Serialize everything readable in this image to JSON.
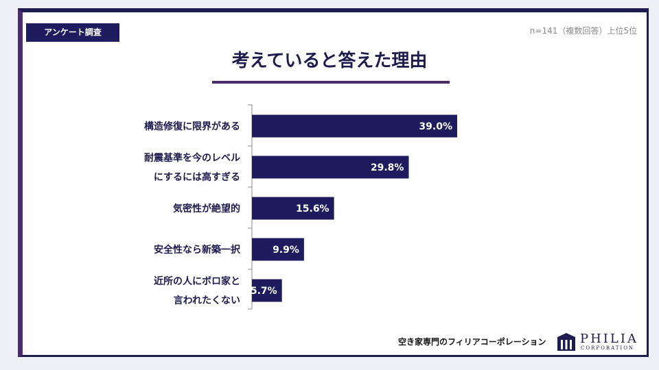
{
  "header": {
    "tag": "アンケート調査",
    "sample_note": "n=141（複数回答）上位5位",
    "title": "考えていると答えた理由"
  },
  "colors": {
    "bar": "#1e1b5e",
    "accent": "#4b2a6e",
    "axis": "#888888",
    "label_text": "#1e1b4e",
    "value_text": "#ffffff"
  },
  "chart_data": {
    "type": "bar",
    "orientation": "horizontal",
    "categories": [
      [
        "構造修復に限界がある"
      ],
      [
        "耐震基準を今のレベル",
        "にするには高すぎる"
      ],
      [
        "気密性が絶望的"
      ],
      [
        "安全性なら新築一択"
      ],
      [
        "近所の人にボロ家と",
        "言われたくない"
      ]
    ],
    "values": [
      39.0,
      29.8,
      15.6,
      9.9,
      5.7
    ],
    "value_labels": [
      "39.0%",
      "29.8%",
      "15.6%",
      "9.9%",
      "5.7%"
    ],
    "xlim": [
      0,
      100
    ],
    "grid": false,
    "legend": "none"
  },
  "footer": {
    "company_text": "空き家専門のフィリアコーポレーション",
    "logo_name": "PHILIA",
    "logo_sub": "CORPORATION"
  }
}
